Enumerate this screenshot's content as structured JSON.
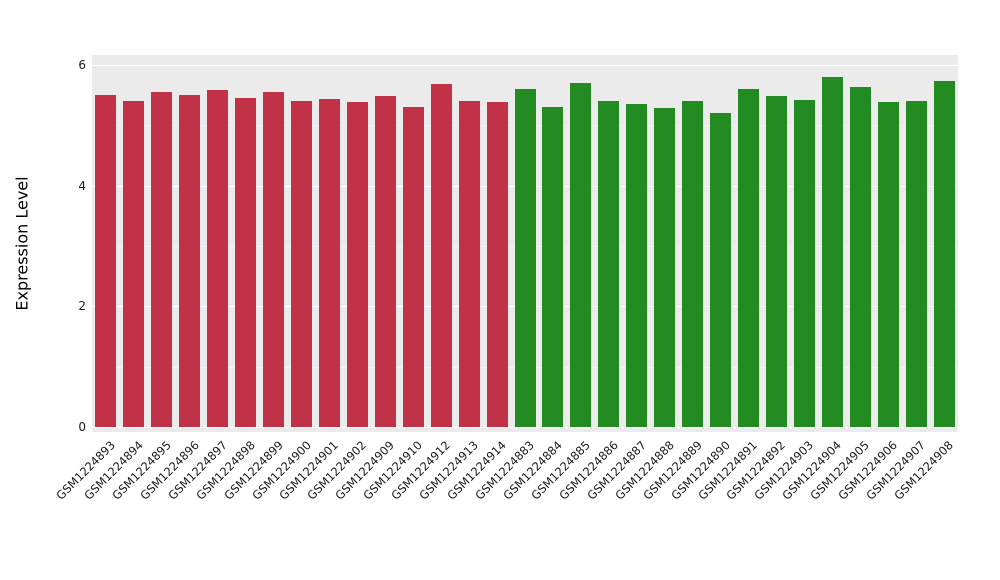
{
  "figure": {
    "plot_bg_color": "#EBEBEB",
    "grid_color": "#FFFFFF",
    "text_color": "#1A1A1A"
  },
  "chart_data": {
    "type": "bar",
    "title": "",
    "xlabel": "",
    "ylabel": "Expression Level",
    "ylim": [
      0,
      6
    ],
    "yticks": [
      0,
      2,
      4,
      6
    ],
    "yticks_minor": [
      1,
      3,
      5
    ],
    "grid": "on",
    "legend": "none",
    "group_colors": [
      {
        "name": "group-1-red",
        "color": "#C13148"
      },
      {
        "name": "group-2-green",
        "color": "#228B22"
      }
    ],
    "categories": [
      "GSM1224893",
      "GSM1224894",
      "GSM1224895",
      "GSM1224896",
      "GSM1224897",
      "GSM1224898",
      "GSM1224899",
      "GSM1224900",
      "GSM1224901",
      "GSM1224902",
      "GSM1224909",
      "GSM1224910",
      "GSM1224912",
      "GSM1224913",
      "GSM1224914",
      "GSM1224883",
      "GSM1224884",
      "GSM1224885",
      "GSM1224886",
      "GSM1224887",
      "GSM1224888",
      "GSM1224889",
      "GSM1224890",
      "GSM1224891",
      "GSM1224892",
      "GSM1224903",
      "GSM1224904",
      "GSM1224905",
      "GSM1224906",
      "GSM1224907",
      "GSM1224908"
    ],
    "values": [
      5.5,
      5.4,
      5.56,
      5.5,
      5.58,
      5.46,
      5.55,
      5.41,
      5.44,
      5.38,
      5.48,
      5.31,
      5.68,
      5.41,
      5.38,
      5.6,
      5.31,
      5.7,
      5.41,
      5.36,
      5.29,
      5.41,
      5.21,
      5.6,
      5.48,
      5.42,
      5.8,
      5.64,
      5.39,
      5.4,
      5.73
    ],
    "colors": [
      "#C13148",
      "#C13148",
      "#C13148",
      "#C13148",
      "#C13148",
      "#C13148",
      "#C13148",
      "#C13148",
      "#C13148",
      "#C13148",
      "#C13148",
      "#C13148",
      "#C13148",
      "#C13148",
      "#C13148",
      "#228B22",
      "#228B22",
      "#228B22",
      "#228B22",
      "#228B22",
      "#228B22",
      "#228B22",
      "#228B22",
      "#228B22",
      "#228B22",
      "#228B22",
      "#228B22",
      "#228B22",
      "#228B22",
      "#228B22",
      "#228B22"
    ]
  }
}
